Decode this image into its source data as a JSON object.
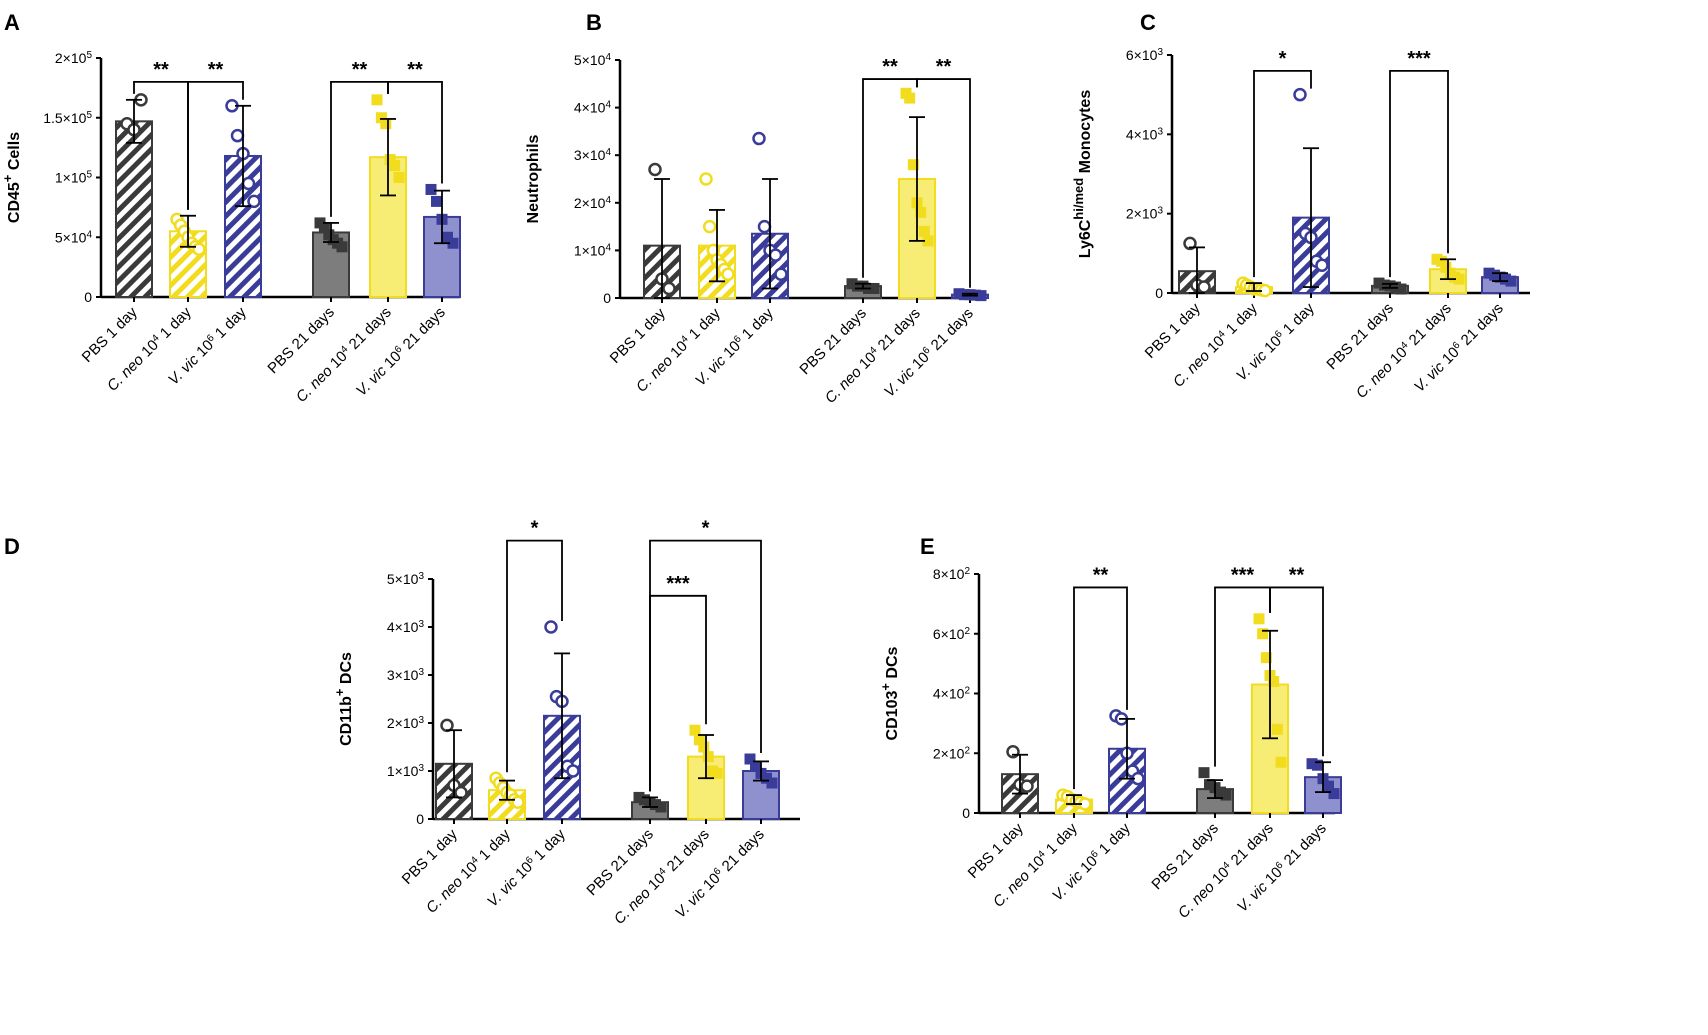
{
  "colors": {
    "grey": "#7d7d7d",
    "grey_dark": "#3a3a3a",
    "yellow": "#f7ec74",
    "yellow_dark": "#f2dc1e",
    "blue": "#8f91cf",
    "blue_dark": "#3a3c99",
    "axis": "#000000"
  },
  "chart_data": [
    {
      "panel": "A",
      "type": "bar",
      "ylabel_main": "CD45",
      "ylabel_sup": "+",
      "ylabel_rest": " Cells",
      "yticks": [
        {
          "v": 0,
          "base": "0",
          "exp": ""
        },
        {
          "v": 50000,
          "base": "5×10",
          "exp": "4"
        },
        {
          "v": 100000,
          "base": "1×10",
          "exp": "5"
        },
        {
          "v": 150000,
          "base": "1.5×10",
          "exp": "5"
        },
        {
          "v": 200000,
          "base": "2×10",
          "exp": "5"
        }
      ],
      "ylim": [
        0,
        200000
      ],
      "groups": [
        {
          "pre": "PBS 1 day",
          "ital": "",
          "exp": "",
          "post": "",
          "color": "grey",
          "pattern": "hatch",
          "mean": 147000,
          "sd": 18000,
          "points": [
            145000,
            140000,
            165000
          ],
          "marker": "circle"
        },
        {
          "pre": "",
          "ital": "C. neo",
          "exp": "4",
          "post": " 1 day",
          "color": "yellow",
          "pattern": "hatch",
          "mean": 55000,
          "sd": 13000,
          "points": [
            65000,
            60000,
            55000,
            50000,
            45000,
            42000,
            40000
          ],
          "marker": "circle"
        },
        {
          "pre": "",
          "ital": "V. vic",
          "exp": "6",
          "post": " 1 day",
          "color": "blue",
          "pattern": "hatch",
          "mean": 118000,
          "sd": 42000,
          "points": [
            160000,
            135000,
            120000,
            95000,
            80000
          ],
          "marker": "circle"
        },
        {
          "pre": "PBS 21 days",
          "ital": "",
          "exp": "",
          "post": "",
          "color": "grey",
          "pattern": "solid",
          "mean": 54000,
          "sd": 8000,
          "points": [
            62000,
            58000,
            52000,
            48000,
            45000,
            42000
          ],
          "marker": "square"
        },
        {
          "pre": "",
          "ital": "C. neo",
          "exp": "4",
          "post": " 21 days",
          "color": "yellow",
          "pattern": "solid",
          "mean": 117000,
          "sd": 32000,
          "points": [
            165000,
            150000,
            145000,
            115000,
            110000,
            100000
          ],
          "marker": "square"
        },
        {
          "pre": "",
          "ital": "V. vic",
          "exp": "6",
          "post": " 21 days",
          "color": "blue",
          "pattern": "solid",
          "mean": 67000,
          "sd": 22000,
          "points": [
            90000,
            80000,
            65000,
            50000,
            45000
          ],
          "marker": "square"
        }
      ],
      "brackets": [
        {
          "from": 0,
          "to": 1,
          "y": 180000,
          "label": "**"
        },
        {
          "from": 1,
          "to": 2,
          "y": 180000,
          "label": "**"
        },
        {
          "from": 3,
          "to": 4,
          "y": 180000,
          "label": "**"
        },
        {
          "from": 4,
          "to": 5,
          "y": 180000,
          "label": "**"
        }
      ]
    },
    {
      "panel": "B",
      "type": "bar",
      "ylabel_main": "Neutrophils",
      "ylabel_sup": "",
      "ylabel_rest": "",
      "yticks": [
        {
          "v": 0,
          "base": "0",
          "exp": ""
        },
        {
          "v": 10000,
          "base": "1×10",
          "exp": "4"
        },
        {
          "v": 20000,
          "base": "2×10",
          "exp": "4"
        },
        {
          "v": 30000,
          "base": "3×10",
          "exp": "4"
        },
        {
          "v": 40000,
          "base": "4×10",
          "exp": "4"
        },
        {
          "v": 50000,
          "base": "5×10",
          "exp": "4"
        }
      ],
      "ylim": [
        0,
        50000
      ],
      "groups": [
        {
          "pre": "PBS 1 day",
          "ital": "",
          "exp": "",
          "post": "",
          "color": "grey",
          "pattern": "hatch",
          "mean": 11000,
          "sd": 14000,
          "points": [
            27000,
            4000,
            2000
          ],
          "marker": "circle"
        },
        {
          "pre": "",
          "ital": "C. neo",
          "exp": "4",
          "post": " 1 day",
          "color": "yellow",
          "pattern": "hatch",
          "mean": 11000,
          "sd": 7500,
          "points": [
            25000,
            15000,
            10000,
            8000,
            7000,
            6000,
            5000
          ],
          "marker": "circle"
        },
        {
          "pre": "",
          "ital": "V. vic",
          "exp": "6",
          "post": " 1 day",
          "color": "blue",
          "pattern": "hatch",
          "mean": 13500,
          "sd": 11500,
          "points": [
            33500,
            15000,
            10000,
            9000,
            5000
          ],
          "marker": "circle"
        },
        {
          "pre": "PBS 21 days",
          "ital": "",
          "exp": "",
          "post": "",
          "color": "grey",
          "pattern": "solid",
          "mean": 2500,
          "sd": 500,
          "points": [
            3000,
            2500,
            2500,
            2000,
            2000
          ],
          "marker": "square"
        },
        {
          "pre": "",
          "ital": "C. neo",
          "exp": "4",
          "post": " 21 days",
          "color": "yellow",
          "pattern": "solid",
          "mean": 25000,
          "sd": 13000,
          "points": [
            43000,
            42000,
            28000,
            20000,
            18000,
            14000,
            12000
          ],
          "marker": "square"
        },
        {
          "pre": "",
          "ital": "V. vic",
          "exp": "6",
          "post": " 21 days",
          "color": "blue",
          "pattern": "solid",
          "mean": 700,
          "sd": 200,
          "points": [
            900,
            700,
            700,
            600,
            500
          ],
          "marker": "square"
        }
      ],
      "brackets": [
        {
          "from": 3,
          "to": 4,
          "y": 46000,
          "label": "**"
        },
        {
          "from": 4,
          "to": 5,
          "y": 46000,
          "label": "**"
        }
      ]
    },
    {
      "panel": "C",
      "type": "bar",
      "ylabel_main": "Ly6C",
      "ylabel_sup": "hi/med",
      "ylabel_rest": " Monocytes",
      "yticks": [
        {
          "v": 0,
          "base": "0",
          "exp": ""
        },
        {
          "v": 2000,
          "base": "2×10",
          "exp": "3"
        },
        {
          "v": 4000,
          "base": "4×10",
          "exp": "3"
        },
        {
          "v": 6000,
          "base": "6×10",
          "exp": "3"
        }
      ],
      "ylim": [
        0,
        6000
      ],
      "groups": [
        {
          "pre": "PBS 1 day",
          "ital": "",
          "exp": "",
          "post": "",
          "color": "grey",
          "pattern": "hatch",
          "mean": 550,
          "sd": 600,
          "points": [
            1250,
            200,
            150
          ],
          "marker": "circle"
        },
        {
          "pre": "",
          "ital": "C. neo",
          "exp": "4",
          "post": " 1 day",
          "color": "yellow",
          "pattern": "hatch",
          "mean": 150,
          "sd": 100,
          "points": [
            250,
            200,
            150,
            100,
            100,
            80,
            60
          ],
          "marker": "circle"
        },
        {
          "pre": "",
          "ital": "V. vic",
          "exp": "6",
          "post": " 1 day",
          "color": "blue",
          "pattern": "hatch",
          "mean": 1900,
          "sd": 1750,
          "points": [
            5000,
            1500,
            1400,
            800,
            700
          ],
          "marker": "circle"
        },
        {
          "pre": "PBS 21 days",
          "ital": "",
          "exp": "",
          "post": "",
          "color": "grey",
          "pattern": "solid",
          "mean": 180,
          "sd": 50,
          "points": [
            250,
            200,
            180,
            150,
            100
          ],
          "marker": "square"
        },
        {
          "pre": "",
          "ital": "C. neo",
          "exp": "4",
          "post": " 21 days",
          "color": "yellow",
          "pattern": "solid",
          "mean": 600,
          "sd": 250,
          "points": [
            850,
            800,
            650,
            500,
            400,
            350
          ],
          "marker": "square"
        },
        {
          "pre": "",
          "ital": "V. vic",
          "exp": "6",
          "post": " 21 days",
          "color": "blue",
          "pattern": "solid",
          "mean": 400,
          "sd": 100,
          "points": [
            500,
            450,
            400,
            350,
            300
          ],
          "marker": "square"
        }
      ],
      "brackets": [
        {
          "from": 1,
          "to": 2,
          "y": 5600,
          "label": "*"
        },
        {
          "from": 3,
          "to": 4,
          "y": 5600,
          "label": "***"
        }
      ]
    },
    {
      "panel": "D",
      "type": "bar",
      "ylabel_main": "CD11b",
      "ylabel_sup": "+",
      "ylabel_rest": " DCs",
      "yticks": [
        {
          "v": 0,
          "base": "0",
          "exp": ""
        },
        {
          "v": 1000,
          "base": "1×10",
          "exp": "3"
        },
        {
          "v": 2000,
          "base": "2×10",
          "exp": "3"
        },
        {
          "v": 3000,
          "base": "3×10",
          "exp": "3"
        },
        {
          "v": 4000,
          "base": "4×10",
          "exp": "3"
        },
        {
          "v": 5000,
          "base": "5×10",
          "exp": "3"
        }
      ],
      "ylim": [
        0,
        5000
      ],
      "groups": [
        {
          "pre": "PBS 1 day",
          "ital": "",
          "exp": "",
          "post": "",
          "color": "grey",
          "pattern": "hatch",
          "mean": 1150,
          "sd": 700,
          "points": [
            1950,
            700,
            550
          ],
          "marker": "circle"
        },
        {
          "pre": "",
          "ital": "C. neo",
          "exp": "4",
          "post": " 1 day",
          "color": "yellow",
          "pattern": "hatch",
          "mean": 600,
          "sd": 200,
          "points": [
            850,
            750,
            650,
            550,
            500,
            400,
            350
          ],
          "marker": "circle"
        },
        {
          "pre": "",
          "ital": "V. vic",
          "exp": "6",
          "post": " 1 day",
          "color": "blue",
          "pattern": "hatch",
          "mean": 2150,
          "sd": 1300,
          "points": [
            4000,
            2550,
            2450,
            1100,
            1000
          ],
          "marker": "circle"
        },
        {
          "pre": "PBS 21 days",
          "ital": "",
          "exp": "",
          "post": "",
          "color": "grey",
          "pattern": "solid",
          "mean": 350,
          "sd": 100,
          "points": [
            450,
            400,
            350,
            300,
            250
          ],
          "marker": "square"
        },
        {
          "pre": "",
          "ital": "C. neo",
          "exp": "4",
          "post": " 21 days",
          "color": "yellow",
          "pattern": "solid",
          "mean": 1300,
          "sd": 450,
          "points": [
            1850,
            1650,
            1500,
            1300,
            1000,
            950
          ],
          "marker": "square"
        },
        {
          "pre": "",
          "ital": "V. vic",
          "exp": "6",
          "post": " 21 days",
          "color": "blue",
          "pattern": "solid",
          "mean": 1000,
          "sd": 200,
          "points": [
            1250,
            1100,
            950,
            850,
            750
          ],
          "marker": "square"
        }
      ],
      "brackets": [
        {
          "from": 1,
          "to": 2,
          "y": 5800,
          "label": "*"
        },
        {
          "from": 3,
          "to": 5,
          "y": 5800,
          "label": "*"
        },
        {
          "from": 3,
          "to": 4,
          "y": 4650,
          "label": "***"
        }
      ]
    },
    {
      "panel": "E",
      "type": "bar",
      "ylabel_main": "CD103",
      "ylabel_sup": "+",
      "ylabel_rest": " DCs",
      "yticks": [
        {
          "v": 0,
          "base": "0",
          "exp": ""
        },
        {
          "v": 200,
          "base": "2×10",
          "exp": "2"
        },
        {
          "v": 400,
          "base": "4×10",
          "exp": "2"
        },
        {
          "v": 600,
          "base": "6×10",
          "exp": "2"
        },
        {
          "v": 800,
          "base": "8×10",
          "exp": "2"
        }
      ],
      "ylim": [
        0,
        800
      ],
      "groups": [
        {
          "pre": "PBS 1 day",
          "ital": "",
          "exp": "",
          "post": "",
          "color": "grey",
          "pattern": "hatch",
          "mean": 130,
          "sd": 65,
          "points": [
            205,
            95,
            90
          ],
          "marker": "circle"
        },
        {
          "pre": "",
          "ital": "C. neo",
          "exp": "4",
          "post": " 1 day",
          "color": "yellow",
          "pattern": "hatch",
          "mean": 45,
          "sd": 15,
          "points": [
            60,
            55,
            45,
            40,
            35,
            30
          ],
          "marker": "circle"
        },
        {
          "pre": "",
          "ital": "V. vic",
          "exp": "6",
          "post": " 1 day",
          "color": "blue",
          "pattern": "hatch",
          "mean": 215,
          "sd": 100,
          "points": [
            325,
            315,
            200,
            140,
            115
          ],
          "marker": "circle"
        },
        {
          "pre": "PBS 21 days",
          "ital": "",
          "exp": "",
          "post": "",
          "color": "grey",
          "pattern": "solid",
          "mean": 80,
          "sd": 30,
          "points": [
            135,
            95,
            85,
            70,
            60
          ],
          "marker": "square"
        },
        {
          "pre": "",
          "ital": "C. neo",
          "exp": "4",
          "post": " 21 days",
          "color": "yellow",
          "pattern": "solid",
          "mean": 430,
          "sd": 180,
          "points": [
            650,
            600,
            520,
            460,
            440,
            280,
            170
          ],
          "marker": "square"
        },
        {
          "pre": "",
          "ital": "V. vic",
          "exp": "6",
          "post": " 21 days",
          "color": "blue",
          "pattern": "solid",
          "mean": 120,
          "sd": 50,
          "points": [
            165,
            160,
            115,
            90,
            65
          ],
          "marker": "square"
        }
      ],
      "brackets": [
        {
          "from": 1,
          "to": 2,
          "y": 755,
          "label": "**"
        },
        {
          "from": 3,
          "to": 4,
          "y": 755,
          "label": "***"
        },
        {
          "from": 4,
          "to": 5,
          "y": 755,
          "label": "**"
        }
      ]
    }
  ]
}
